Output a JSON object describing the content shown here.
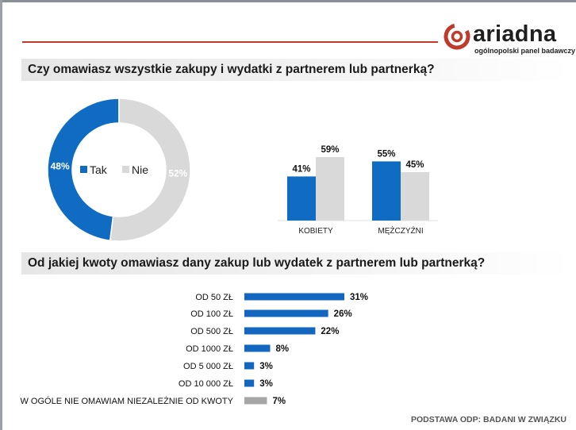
{
  "brand": {
    "name": "ariadna",
    "tagline": "ogólnopolski panel badawczy",
    "accent_color": "#c0392b"
  },
  "questions": {
    "q1": "Czy omawiasz wszystkie zakupy i wydatki z partnerem lub partnerką?",
    "q2": "Od jakiej kwoty omawiasz dany zakup lub wydatek z partnerem lub partnerką?"
  },
  "footer": "PODSTAWA ODP: BADANI W ZWIĄZKU",
  "colors": {
    "tak": "#0f6cc2",
    "nie": "#d9d9d9",
    "hbar": "#1467c0",
    "hbar_gray": "#a6a6a6"
  },
  "chart_data": [
    {
      "type": "pie",
      "title": "",
      "labels": [
        "Tak",
        "Nie"
      ],
      "values": [
        48,
        52
      ],
      "value_labels": [
        "48%",
        "52%"
      ],
      "legend": "center"
    },
    {
      "type": "bar",
      "title": "",
      "categories": [
        "KOBIETY",
        "MĘŻCZYŹNI"
      ],
      "series": [
        {
          "name": "Tak",
          "values": [
            41,
            55
          ],
          "labels": [
            "41%",
            "55%"
          ]
        },
        {
          "name": "Nie",
          "values": [
            59,
            45
          ],
          "labels": [
            "59%",
            "45%"
          ]
        }
      ],
      "ylim": [
        0,
        70
      ]
    },
    {
      "type": "bar",
      "orientation": "horizontal",
      "title": "",
      "categories": [
        "OD 50 ZŁ",
        "OD 100 ZŁ",
        "OD 500 ZŁ",
        "OD 1000 ZŁ",
        "OD 5 000 ZŁ",
        "OD 10 000 ZŁ",
        "W OGÓLE NIE OMAWIAM  NIEZALEŻNIE OD KWOTY"
      ],
      "values": [
        31,
        26,
        22,
        8,
        3,
        3,
        7
      ],
      "labels": [
        "31%",
        "26%",
        "22%",
        "8%",
        "3%",
        "3%",
        "7%"
      ],
      "xlim": [
        0,
        35
      ]
    }
  ]
}
